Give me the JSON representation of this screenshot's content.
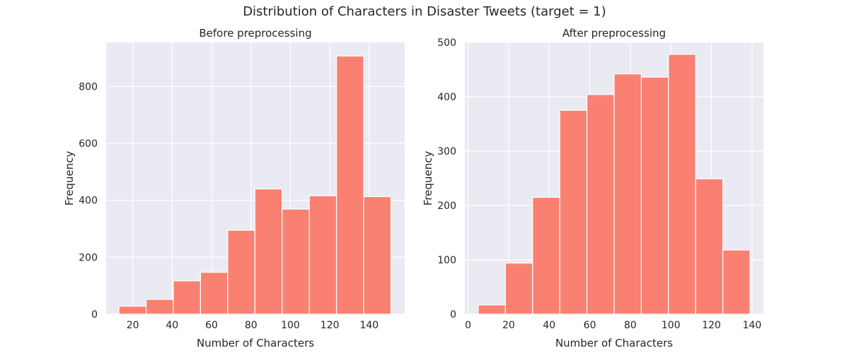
{
  "figure": {
    "title": "Distribution of Characters in Disaster Tweets (target = 1)"
  },
  "colors": {
    "bar": "#fa8072",
    "panel_bg": "#eaeaf2",
    "grid": "#ffffff",
    "text": "#262626"
  },
  "chart_data": [
    {
      "type": "bar",
      "title": "Before preprocessing",
      "xlabel": "Number of Characters",
      "ylabel": "Frequency",
      "xlim": [
        6.5,
        158
      ],
      "ylim": [
        0,
        955
      ],
      "xticks": [
        20,
        40,
        60,
        80,
        100,
        120,
        140
      ],
      "yticks": [
        0,
        200,
        400,
        600,
        800
      ],
      "grid": true,
      "bins": [
        {
          "x0": 13,
          "x1": 26.8,
          "value": 28
        },
        {
          "x0": 26.8,
          "x1": 40.6,
          "value": 52
        },
        {
          "x0": 40.6,
          "x1": 54.4,
          "value": 117
        },
        {
          "x0": 54.4,
          "x1": 68.2,
          "value": 147
        },
        {
          "x0": 68.2,
          "x1": 82.0,
          "value": 295
        },
        {
          "x0": 82.0,
          "x1": 95.8,
          "value": 440
        },
        {
          "x0": 95.8,
          "x1": 109.6,
          "value": 369
        },
        {
          "x0": 109.6,
          "x1": 123.4,
          "value": 416
        },
        {
          "x0": 123.4,
          "x1": 137.2,
          "value": 907
        },
        {
          "x0": 137.2,
          "x1": 151,
          "value": 413
        }
      ]
    },
    {
      "type": "bar",
      "title": "After preprocessing",
      "xlabel": "Number of Characters",
      "ylabel": "Frequency",
      "xlim": [
        -1.6,
        145.6
      ],
      "ylim": [
        0,
        500
      ],
      "xticks": [
        0,
        20,
        40,
        60,
        80,
        100,
        120,
        140
      ],
      "yticks": [
        0,
        100,
        200,
        300,
        400,
        500
      ],
      "grid": true,
      "bins": [
        {
          "x0": 5,
          "x1": 18.4,
          "value": 17
        },
        {
          "x0": 18.4,
          "x1": 31.8,
          "value": 94
        },
        {
          "x0": 31.8,
          "x1": 45.2,
          "value": 215
        },
        {
          "x0": 45.2,
          "x1": 58.6,
          "value": 375
        },
        {
          "x0": 58.6,
          "x1": 72.0,
          "value": 404
        },
        {
          "x0": 72.0,
          "x1": 85.4,
          "value": 442
        },
        {
          "x0": 85.4,
          "x1": 98.8,
          "value": 436
        },
        {
          "x0": 98.8,
          "x1": 112.2,
          "value": 478
        },
        {
          "x0": 112.2,
          "x1": 125.6,
          "value": 249
        },
        {
          "x0": 125.6,
          "x1": 139,
          "value": 118
        }
      ]
    }
  ]
}
